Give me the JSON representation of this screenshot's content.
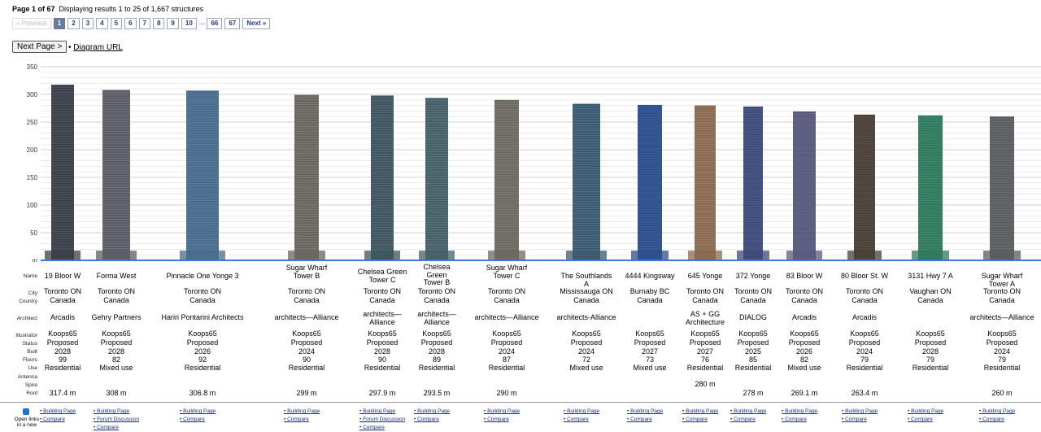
{
  "header": {
    "page_label": "Page 1 of 67",
    "results_text": "Displaying results 1 to 25 of 1,667 structures"
  },
  "pager": {
    "prev_label": "« Previous",
    "pages": [
      "1",
      "2",
      "3",
      "4",
      "5",
      "6",
      "7",
      "8",
      "9",
      "10"
    ],
    "dots": "...",
    "last_pages": [
      "66",
      "67"
    ],
    "next_label": "Next »",
    "current": "1"
  },
  "actions": {
    "next_page_button": "Next Page >",
    "diagram_url": "Diagram URL"
  },
  "axis": {
    "y_ticks": [
      "350",
      "300",
      "250",
      "200",
      "150",
      "100",
      "50",
      "m"
    ],
    "y_values": [
      350,
      300,
      250,
      200,
      150,
      100,
      50,
      0
    ]
  },
  "row_labels": [
    "Name",
    "City",
    "Country",
    "Architect",
    "Illustrator",
    "Status",
    "Built",
    "Floors",
    "Use",
    "Antenna",
    "Spire",
    "Roof"
  ],
  "buildings": [
    {
      "name": "19 Bloor W",
      "city": "Toronto ON",
      "country": "Canada",
      "architect": "Arcadis",
      "illustrator": "Koops65",
      "status": "Proposed",
      "built": "2028",
      "floors": "99",
      "use": "Residential",
      "spire": "",
      "roof": "317.4 m",
      "roof_value": 317.4,
      "color": "#3a3f4a",
      "links": [
        "Building Page",
        "Compare"
      ]
    },
    {
      "name": "Forma West",
      "city": "Toronto ON",
      "country": "Canada",
      "architect": "Gehry Partners",
      "illustrator": "Koops65",
      "status": "Proposed",
      "built": "2028",
      "floors": "82",
      "use": "Mixed use",
      "spire": "",
      "roof": "308 m",
      "roof_value": 308,
      "color": "#5a5f66",
      "links": [
        "Building Page",
        "Forum Discussion",
        "Compare"
      ]
    },
    {
      "name": "Pinnacle One Yonge 3",
      "city": "Toronto ON",
      "country": "Canada",
      "architect": "Hariri Pontarini Architects",
      "illustrator": "Koops65",
      "status": "Proposed",
      "built": "2026",
      "floors": "92",
      "use": "Residential",
      "spire": "",
      "roof": "306.8 m",
      "roof_value": 306.8,
      "color": "#4a6c8e",
      "links": [
        "Building Page",
        "Compare"
      ]
    },
    {
      "name": "Sugar Wharf Tower B",
      "city": "Toronto ON",
      "country": "Canada",
      "architect": "architects—Alliance",
      "illustrator": "Koops65",
      "status": "Proposed",
      "built": "2024",
      "floors": "90",
      "use": "Residential",
      "spire": "",
      "roof": "299 m",
      "roof_value": 299,
      "color": "#6a6660",
      "links": [
        "Building Page",
        "Compare"
      ]
    },
    {
      "name": "Chelsea Green Tower C",
      "city": "Toronto ON",
      "country": "Canada",
      "architect": "architects—Alliance",
      "illustrator": "Koops65",
      "status": "Proposed",
      "built": "2028",
      "floors": "90",
      "use": "Residential",
      "spire": "",
      "roof": "297.9 m",
      "roof_value": 297.9,
      "color": "#3f5560",
      "links": [
        "Building Page",
        "Forum Discussion",
        "Compare"
      ]
    },
    {
      "name": "Chelsea Green Tower B",
      "city": "Toronto ON",
      "country": "Canada",
      "architect": "architects—Alliance",
      "illustrator": "Koops65",
      "status": "Proposed",
      "built": "2028",
      "floors": "89",
      "use": "Residential",
      "spire": "",
      "roof": "293.5 m",
      "roof_value": 293.5,
      "color": "#46606a",
      "links": [
        "Building Page",
        "Compare"
      ]
    },
    {
      "name": "Sugar Wharf Tower C",
      "city": "Toronto ON",
      "country": "Canada",
      "architect": "architects—Alliance",
      "illustrator": "Koops65",
      "status": "Proposed",
      "built": "2024",
      "floors": "87",
      "use": "Residential",
      "spire": "",
      "roof": "290 m",
      "roof_value": 290,
      "color": "#6e6a62",
      "links": [
        "Building Page",
        "Compare"
      ]
    },
    {
      "name": "The Southlands A",
      "city": "Mississauga ON",
      "country": "Canada",
      "architect": "architects-Alliance",
      "illustrator": "Koops65",
      "status": "Proposed",
      "built": "2024",
      "floors": "72",
      "use": "Mixed use",
      "spire": "",
      "roof": "",
      "roof_value": 283,
      "color": "#3c5a70",
      "links": [
        "Building Page",
        "Compare"
      ]
    },
    {
      "name": "4444 Kingsway",
      "city": "Burnaby BC",
      "country": "Canada",
      "architect": "",
      "illustrator": "Koops65",
      "status": "Proposed",
      "built": "2027",
      "floors": "73",
      "use": "Mixed use",
      "spire": "",
      "roof": "",
      "roof_value": 281,
      "color": "#2c4f8c",
      "links": [
        "Building Page",
        "Compare"
      ]
    },
    {
      "name": "645 Yonge",
      "city": "Toronto ON",
      "country": "Canada",
      "architect": "AS + GG Architecture",
      "illustrator": "Koops65",
      "status": "Proposed",
      "built": "2027",
      "floors": "76",
      "use": "Residential",
      "spire": "280 m",
      "roof": "",
      "roof_value": 280,
      "color": "#8a6a50",
      "links": [
        "Building Page",
        "Compare"
      ]
    },
    {
      "name": "372 Yonge",
      "city": "Toronto ON",
      "country": "Canada",
      "architect": "DIALOG",
      "illustrator": "Koops65",
      "status": "Proposed",
      "built": "2025",
      "floors": "85",
      "use": "Residential",
      "spire": "",
      "roof": "278 m",
      "roof_value": 278,
      "color": "#3d4a7a",
      "links": [
        "Building Page",
        "Compare"
      ]
    },
    {
      "name": "83 Bloor W",
      "city": "Toronto ON",
      "country": "Canada",
      "architect": "Arcadis",
      "illustrator": "Koops65",
      "status": "Proposed",
      "built": "2026",
      "floors": "82",
      "use": "Mixed use",
      "spire": "",
      "roof": "269.1 m",
      "roof_value": 269.1,
      "color": "#5a5a80",
      "links": [
        "Building Page",
        "Compare"
      ]
    },
    {
      "name": "80 Bloor St. W",
      "city": "Toronto ON",
      "country": "Canada",
      "architect": "Arcadis",
      "illustrator": "Koops65",
      "status": "Proposed",
      "built": "2024",
      "floors": "79",
      "use": "Residential",
      "spire": "",
      "roof": "263.4 m",
      "roof_value": 263.4,
      "color": "#4a4038",
      "links": [
        "Building Page",
        "Compare"
      ]
    },
    {
      "name": "3131 Hwy 7 A",
      "city": "Vaughan ON",
      "country": "Canada",
      "architect": "",
      "illustrator": "Koops65",
      "status": "Proposed",
      "built": "2028",
      "floors": "79",
      "use": "Residential",
      "spire": "",
      "roof": "",
      "roof_value": 262,
      "color": "#2f7a5e",
      "links": [
        "Building Page",
        "Compare"
      ]
    },
    {
      "name": "Sugar Wharf Tower A",
      "city": "Toronto ON",
      "country": "Canada",
      "architect": "architects—Alliance",
      "illustrator": "Koops65",
      "status": "Proposed",
      "built": "2024",
      "floors": "79",
      "use": "Residential",
      "spire": "",
      "roof": "260 m",
      "roof_value": 260,
      "color": "#5a5e60",
      "links": [
        "Building Page",
        "Compare"
      ]
    }
  ],
  "footer": {
    "open_links_label": "Open links in a new"
  }
}
